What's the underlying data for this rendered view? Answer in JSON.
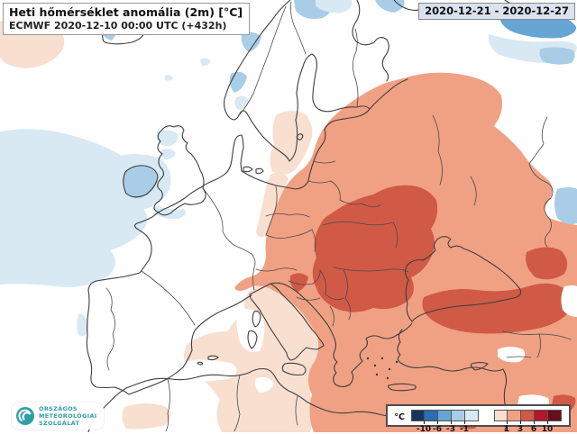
{
  "header": {
    "title": "Heti hőmérséklet anomália (2m) [°C]",
    "model_line": "ECMWF 2020-12-10 00:00 UTC (+432h)"
  },
  "period": {
    "date_range": "2020-12-21 - 2020-12-27"
  },
  "logo": {
    "line1": "ORSZÁGOS",
    "line2": "METEOROLÓGIAI",
    "line3": "SZOLGÁLAT",
    "color": "#2F9EA8"
  },
  "legend": {
    "unit": "°C",
    "cold_colors": [
      "#16355B",
      "#2B6CB3",
      "#66A5D4",
      "#A9CDE6",
      "#D8E9F4"
    ],
    "cold_ticks": [
      "-10",
      "-6",
      "-3",
      "-1"
    ],
    "warm_colors": [
      "#F8DFD0",
      "#F0A184",
      "#D05A46",
      "#B2182B",
      "#650F1E"
    ],
    "warm_ticks": [
      "1",
      "3",
      "6",
      "10"
    ]
  },
  "map": {
    "palette": {
      "sea": "#FFFFFF",
      "coast": "#3E3E3E",
      "border": "#4A4A4A",
      "c1": "#D8E9F4",
      "c2": "#A9CDE6",
      "c3": "#66A5D4",
      "w1": "#F8DFD0",
      "w2": "#F0A184",
      "w3": "#D05A46"
    }
  }
}
